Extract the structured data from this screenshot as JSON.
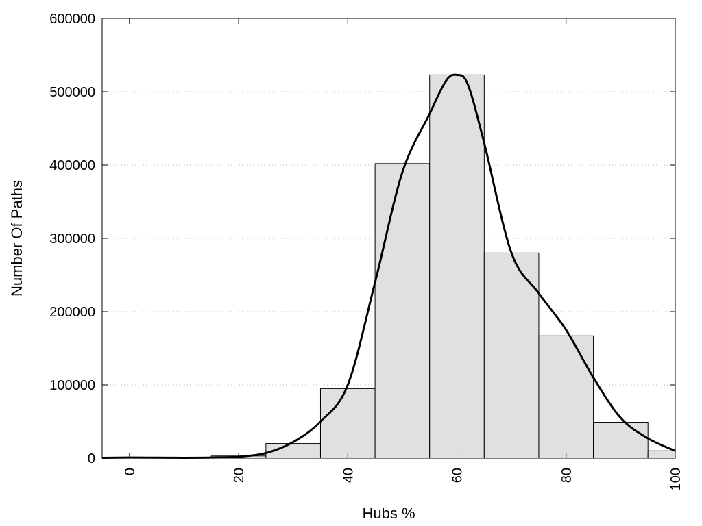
{
  "chart_data": {
    "type": "bar",
    "title": "",
    "xlabel": "Hubs %",
    "ylabel": "Number Of Paths",
    "xlim": [
      -5,
      100
    ],
    "ylim": [
      0,
      600000
    ],
    "x_ticks": [
      0,
      20,
      40,
      60,
      80,
      100
    ],
    "y_ticks": [
      0,
      100000,
      200000,
      300000,
      400000,
      500000,
      600000
    ],
    "grid": "horizontal dotted",
    "legend": "none",
    "bin_width": 10,
    "series": [
      {
        "type": "histogram",
        "bins": [
          {
            "start": -5,
            "end": 5,
            "value": 1000
          },
          {
            "start": 5,
            "end": 15,
            "value": 500
          },
          {
            "start": 15,
            "end": 25,
            "value": 3000
          },
          {
            "start": 25,
            "end": 35,
            "value": 20000
          },
          {
            "start": 35,
            "end": 45,
            "value": 95000
          },
          {
            "start": 45,
            "end": 55,
            "value": 402000
          },
          {
            "start": 55,
            "end": 65,
            "value": 523000
          },
          {
            "start": 65,
            "end": 75,
            "value": 280000
          },
          {
            "start": 75,
            "end": 85,
            "value": 167000
          },
          {
            "start": 85,
            "end": 95,
            "value": 49000
          },
          {
            "start": 95,
            "end": 100,
            "value": 10000
          }
        ],
        "color": "#e0e0e0"
      },
      {
        "type": "line",
        "color": "#000000",
        "points": [
          [
            -5,
            500
          ],
          [
            0,
            800
          ],
          [
            5,
            700
          ],
          [
            10,
            500
          ],
          [
            15,
            800
          ],
          [
            20,
            2000
          ],
          [
            25,
            7000
          ],
          [
            30,
            22000
          ],
          [
            35,
            50000
          ],
          [
            40,
            100000
          ],
          [
            45,
            240000
          ],
          [
            50,
            390000
          ],
          [
            55,
            470000
          ],
          [
            58,
            515000
          ],
          [
            60,
            523000
          ],
          [
            62,
            510000
          ],
          [
            65,
            430000
          ],
          [
            70,
            280000
          ],
          [
            75,
            225000
          ],
          [
            80,
            175000
          ],
          [
            85,
            110000
          ],
          [
            90,
            55000
          ],
          [
            95,
            27000
          ],
          [
            100,
            10000
          ]
        ]
      }
    ]
  }
}
